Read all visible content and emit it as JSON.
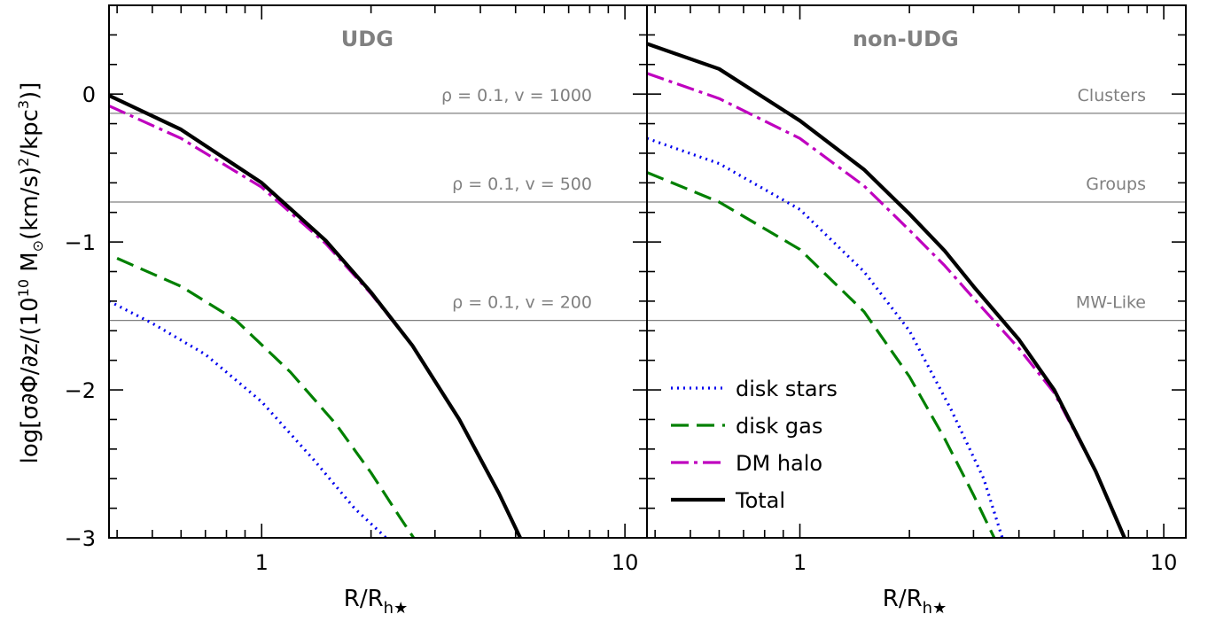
{
  "chart_data": {
    "type": "line",
    "ylabel": "log[σ∂Φ/∂z/(10",
    "ylabel_exp": "10",
    "ylabel_mid": " M",
    "ylabel_sun": "⊙",
    "ylabel_tail1": "(km/s)",
    "ylabel_sq": "2",
    "ylabel_tail2": "/kpc",
    "ylabel_cube": "3",
    "ylabel_end": ")]",
    "xlabel_main": "R/R",
    "xlabel_sub": "h★",
    "ylim": [
      -3,
      0.6
    ],
    "yticks": [
      0,
      -1,
      -2,
      -3
    ],
    "ytick_labels": [
      "0",
      "−1",
      "−2",
      "−3"
    ],
    "x_scale": "log",
    "xticks": [
      1,
      10
    ],
    "xtick_labels": [
      "1",
      "10"
    ],
    "legend": {
      "placement": "lower-left of right panel",
      "entries": [
        "disk stars",
        "disk gas",
        "DM halo",
        "Total"
      ]
    },
    "colors": {
      "disk_stars": "#0000ee",
      "disk_gas": "#008000",
      "dm_halo": "#bf00bf",
      "total": "#000000",
      "reference": "#808080"
    },
    "panels": [
      {
        "title": "UDG",
        "xlim": [
          0.38,
          11.5
        ],
        "reference_lines": [
          {
            "label": "ρ = 0.1, v = 1000",
            "y": -0.13
          },
          {
            "label": "ρ = 0.1, v = 500",
            "y": -0.73
          },
          {
            "label": "ρ = 0.1, v = 200",
            "y": -1.53
          }
        ],
        "series": [
          {
            "name": "disk stars",
            "style": "dotted",
            "x": [
              0.38,
              0.5,
              0.7,
              1.0,
              1.4,
              1.8,
              2.2
            ],
            "y": [
              -1.4,
              -1.55,
              -1.76,
              -2.08,
              -2.48,
              -2.8,
              -3.0
            ]
          },
          {
            "name": "disk gas",
            "style": "dashed",
            "x": [
              0.4,
              0.6,
              0.85,
              1.2,
              1.6,
              2.0,
              2.4,
              2.62
            ],
            "y": [
              -1.11,
              -1.3,
              -1.53,
              -1.88,
              -2.23,
              -2.56,
              -2.86,
              -3.0
            ]
          },
          {
            "name": "DM halo",
            "style": "dashdot",
            "x": [
              0.38,
              0.6,
              1.0,
              1.5,
              2.0,
              2.6,
              3.5,
              4.5,
              5.15
            ],
            "y": [
              -0.08,
              -0.3,
              -0.63,
              -1.01,
              -1.35,
              -1.7,
              -2.2,
              -2.7,
              -3.0
            ]
          },
          {
            "name": "Total",
            "style": "solid",
            "x": [
              0.38,
              0.6,
              1.0,
              1.5,
              2.0,
              2.6,
              3.5,
              4.5,
              5.15
            ],
            "y": [
              -0.01,
              -0.24,
              -0.6,
              -0.99,
              -1.34,
              -1.7,
              -2.2,
              -2.7,
              -3.0
            ]
          }
        ]
      },
      {
        "title": "non-UDG",
        "xlim": [
          0.38,
          11.5
        ],
        "reference_lines": [
          {
            "label": "Clusters",
            "y": -0.13
          },
          {
            "label": "Groups",
            "y": -0.73
          },
          {
            "label": "MW-Like",
            "y": -1.53
          }
        ],
        "series": [
          {
            "name": "disk stars",
            "style": "dotted",
            "x": [
              0.38,
              0.6,
              1.0,
              1.5,
              2.0,
              2.6,
              3.2,
              3.6
            ],
            "y": [
              -0.3,
              -0.47,
              -0.78,
              -1.2,
              -1.6,
              -2.13,
              -2.6,
              -3.0
            ]
          },
          {
            "name": "disk gas",
            "style": "dashed",
            "x": [
              0.38,
              0.6,
              1.0,
              1.5,
              2.0,
              2.5,
              3.0,
              3.42
            ],
            "y": [
              -0.53,
              -0.73,
              -1.05,
              -1.47,
              -1.91,
              -2.33,
              -2.71,
              -3.0
            ]
          },
          {
            "name": "DM halo",
            "style": "dashdot",
            "x": [
              0.38,
              0.6,
              1.0,
              1.5,
              2.0,
              2.5,
              3.0,
              4.0,
              5.0,
              6.5,
              7.8
            ],
            "y": [
              0.14,
              -0.03,
              -0.3,
              -0.62,
              -0.92,
              -1.16,
              -1.38,
              -1.72,
              -2.02,
              -2.55,
              -3.0
            ]
          },
          {
            "name": "Total",
            "style": "solid",
            "x": [
              0.38,
              0.6,
              1.0,
              1.5,
              2.0,
              2.5,
              3.0,
              4.0,
              5.0,
              6.5,
              7.8
            ],
            "y": [
              0.34,
              0.17,
              -0.18,
              -0.51,
              -0.81,
              -1.06,
              -1.3,
              -1.66,
              -2.0,
              -2.55,
              -3.0
            ]
          }
        ]
      }
    ]
  }
}
